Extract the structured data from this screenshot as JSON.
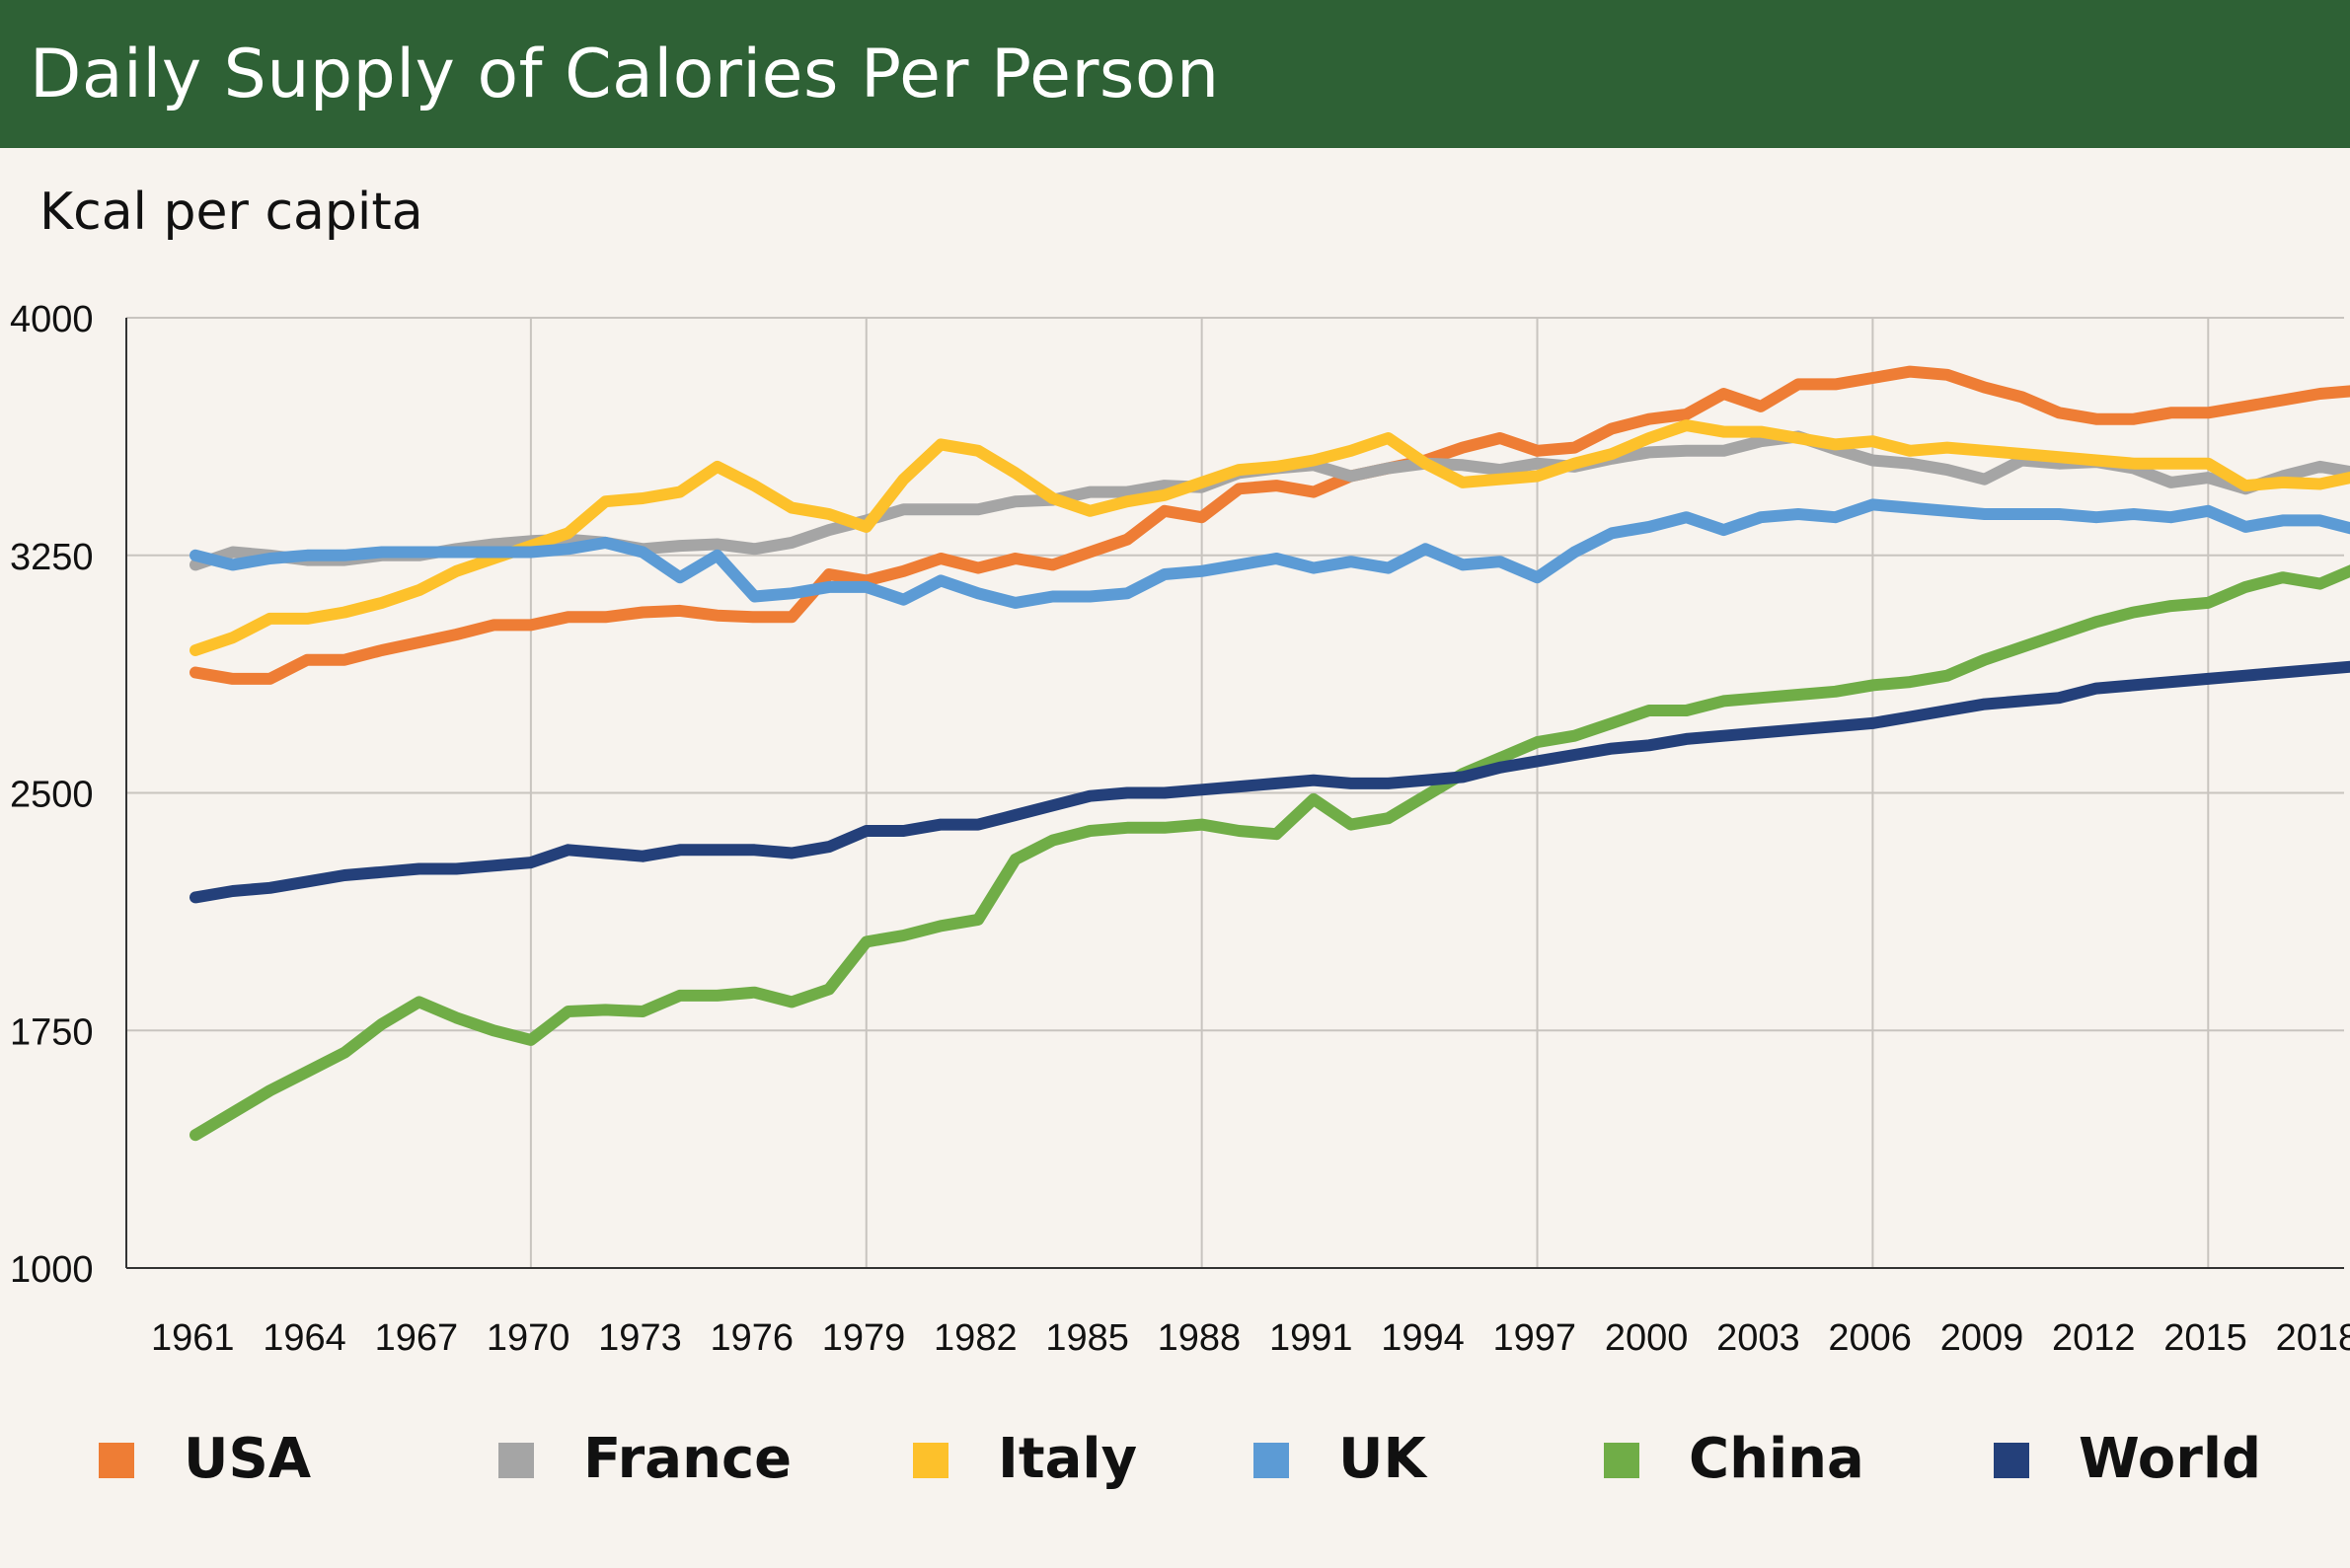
{
  "header": {
    "title": "Daily Supply of Calories Per Person"
  },
  "colors": {
    "header_bg": "#2e6135",
    "background": "#f7f3ee",
    "gridline": "#c8c4bf"
  },
  "chart_data": {
    "type": "line",
    "ylabel": "Kcal per capita",
    "ylim": [
      1000,
      4000
    ],
    "yticks": [
      1000,
      1750,
      2500,
      3250,
      4000
    ],
    "xlim": [
      1961,
      2019
    ],
    "xticks": [
      1961,
      1964,
      1967,
      1970,
      1973,
      1976,
      1979,
      1982,
      1985,
      1988,
      1991,
      1994,
      1997,
      2000,
      2003,
      2006,
      2009,
      2012,
      2015,
      2018
    ],
    "grid": true,
    "legend_position": "bottom",
    "x": [
      1961,
      1962,
      1963,
      1964,
      1965,
      1966,
      1967,
      1968,
      1969,
      1970,
      1971,
      1972,
      1973,
      1974,
      1975,
      1976,
      1977,
      1978,
      1979,
      1980,
      1981,
      1982,
      1983,
      1984,
      1985,
      1986,
      1987,
      1988,
      1989,
      1990,
      1991,
      1992,
      1993,
      1994,
      1995,
      1996,
      1997,
      1998,
      1999,
      2000,
      2001,
      2002,
      2003,
      2004,
      2005,
      2006,
      2007,
      2008,
      2009,
      2010,
      2011,
      2012,
      2013,
      2014,
      2015,
      2016,
      2017,
      2018,
      2019
    ],
    "series": [
      {
        "name": "USA",
        "color": "#ee7d35",
        "values": [
          2880,
          2860,
          2860,
          2920,
          2920,
          2950,
          2975,
          3000,
          3030,
          3030,
          3055,
          3055,
          3070,
          3075,
          3060,
          3055,
          3055,
          3190,
          3170,
          3200,
          3240,
          3210,
          3240,
          3220,
          3260,
          3300,
          3390,
          3370,
          3460,
          3470,
          3450,
          3500,
          3525,
          3550,
          3590,
          3620,
          3580,
          3590,
          3650,
          3680,
          3695,
          3760,
          3720,
          3790,
          3790,
          3810,
          3830,
          3820,
          3780,
          3750,
          3700,
          3680,
          3680,
          3700,
          3700,
          3720,
          3740,
          3760,
          3770
        ]
      },
      {
        "name": "France",
        "color": "#a5a5a5",
        "values": [
          3220,
          3260,
          3250,
          3235,
          3235,
          3250,
          3250,
          3270,
          3285,
          3295,
          3300,
          3290,
          3270,
          3280,
          3285,
          3270,
          3290,
          3330,
          3360,
          3395,
          3395,
          3395,
          3420,
          3425,
          3450,
          3450,
          3470,
          3465,
          3510,
          3525,
          3535,
          3500,
          3525,
          3540,
          3535,
          3520,
          3540,
          3530,
          3555,
          3575,
          3580,
          3580,
          3610,
          3625,
          3585,
          3550,
          3540,
          3520,
          3490,
          3550,
          3540,
          3545,
          3525,
          3480,
          3495,
          3460,
          3500,
          3530,
          3510
        ]
      },
      {
        "name": "Italy",
        "color": "#fdc12b",
        "values": [
          2950,
          2990,
          3050,
          3050,
          3070,
          3100,
          3140,
          3200,
          3240,
          3280,
          3320,
          3420,
          3430,
          3450,
          3530,
          3470,
          3400,
          3380,
          3340,
          3490,
          3600,
          3580,
          3510,
          3430,
          3390,
          3420,
          3440,
          3480,
          3520,
          3530,
          3550,
          3580,
          3620,
          3540,
          3480,
          3490,
          3500,
          3540,
          3570,
          3620,
          3660,
          3640,
          3640,
          3620,
          3600,
          3610,
          3580,
          3590,
          3580,
          3570,
          3560,
          3550,
          3540,
          3540,
          3540,
          3470,
          3480,
          3475,
          3500
        ]
      },
      {
        "name": "UK",
        "color": "#5c9bd5",
        "values": [
          3250,
          3220,
          3240,
          3250,
          3250,
          3260,
          3260,
          3260,
          3260,
          3260,
          3270,
          3290,
          3260,
          3180,
          3250,
          3120,
          3130,
          3150,
          3150,
          3110,
          3170,
          3130,
          3100,
          3120,
          3120,
          3130,
          3190,
          3200,
          3220,
          3240,
          3210,
          3230,
          3210,
          3270,
          3220,
          3230,
          3180,
          3260,
          3320,
          3340,
          3370,
          3330,
          3370,
          3380,
          3370,
          3410,
          3400,
          3390,
          3380,
          3380,
          3380,
          3370,
          3380,
          3370,
          3390,
          3340,
          3360,
          3360,
          3330
        ]
      },
      {
        "name": "China",
        "color": "#70ad47",
        "values": [
          1420,
          1490,
          1560,
          1620,
          1680,
          1770,
          1840,
          1790,
          1750,
          1720,
          1810,
          1815,
          1810,
          1860,
          1860,
          1870,
          1840,
          1880,
          2030,
          2050,
          2080,
          2100,
          2290,
          2350,
          2380,
          2390,
          2390,
          2400,
          2380,
          2370,
          2480,
          2400,
          2420,
          2490,
          2560,
          2610,
          2660,
          2680,
          2720,
          2760,
          2760,
          2790,
          2800,
          2810,
          2820,
          2840,
          2850,
          2870,
          2920,
          2960,
          3000,
          3040,
          3070,
          3090,
          3100,
          3150,
          3180,
          3160,
          3210
        ]
      },
      {
        "name": "World",
        "color": "#24407a",
        "values": [
          2170,
          2190,
          2200,
          2220,
          2240,
          2250,
          2260,
          2260,
          2270,
          2280,
          2320,
          2310,
          2300,
          2320,
          2320,
          2320,
          2310,
          2330,
          2380,
          2380,
          2400,
          2400,
          2430,
          2460,
          2490,
          2500,
          2500,
          2510,
          2520,
          2530,
          2540,
          2530,
          2530,
          2540,
          2550,
          2580,
          2600,
          2620,
          2640,
          2650,
          2670,
          2680,
          2690,
          2700,
          2710,
          2720,
          2740,
          2760,
          2780,
          2790,
          2800,
          2830,
          2840,
          2850,
          2860,
          2870,
          2880,
          2890,
          2900
        ]
      }
    ]
  }
}
